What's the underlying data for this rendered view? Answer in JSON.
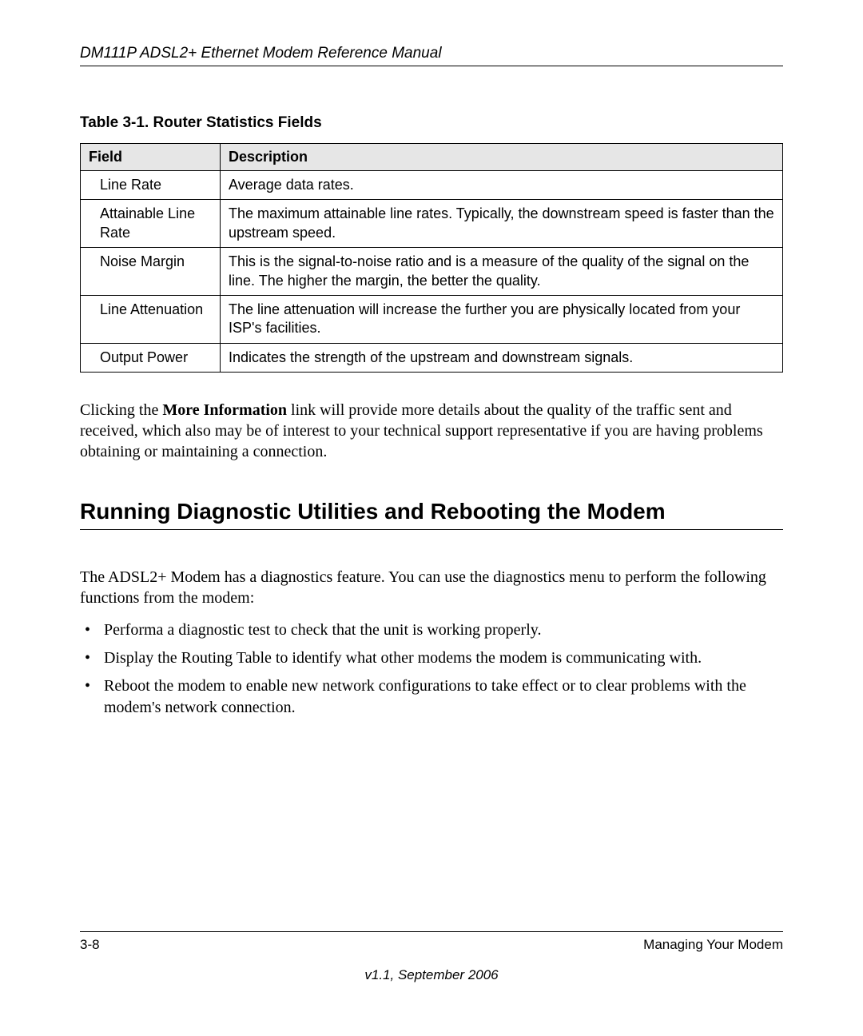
{
  "header": {
    "title": "DM111P ADSL2+ Ethernet Modem Reference Manual"
  },
  "table": {
    "caption": "Table 3-1. Router Statistics Fields",
    "columns": [
      "Field",
      "Description"
    ],
    "rows": [
      {
        "field": "Line Rate",
        "description": "Average data rates."
      },
      {
        "field": "Attainable Line Rate",
        "description": "The maximum attainable line rates. Typically, the downstream speed is faster than the upstream speed."
      },
      {
        "field": "Noise Margin",
        "description": "This is the signal-to-noise ratio and is a measure of the quality of the signal on the line. The higher the margin, the better the quality."
      },
      {
        "field": "Line Attenuation",
        "description": "The line attenuation will increase the further you are physically located from your ISP's facilities."
      },
      {
        "field": "Output Power",
        "description": "Indicates the strength of the upstream and downstream signals."
      }
    ]
  },
  "paragraph1": {
    "pre": "Clicking the ",
    "bold": "More Information",
    "post": " link will provide more details about the quality of the traffic sent and received, which also may be of interest to your technical support representative if you are having problems obtaining or maintaining a connection."
  },
  "section_heading": "Running Diagnostic Utilities and Rebooting the Modem",
  "paragraph2": "The ADSL2+ Modem has a diagnostics feature. You can use the diagnostics menu to perform the following functions from the modem:",
  "bullets": [
    "Performa a diagnostic test to check that the unit is working properly.",
    "Display the Routing Table to identify what other modems the modem is communicating with.",
    "Reboot the modem to enable new network configurations to take effect or to clear problems with the modem's network connection."
  ],
  "footer": {
    "page": "3-8",
    "right": "Managing Your Modem",
    "version": "v1.1, September 2006"
  }
}
